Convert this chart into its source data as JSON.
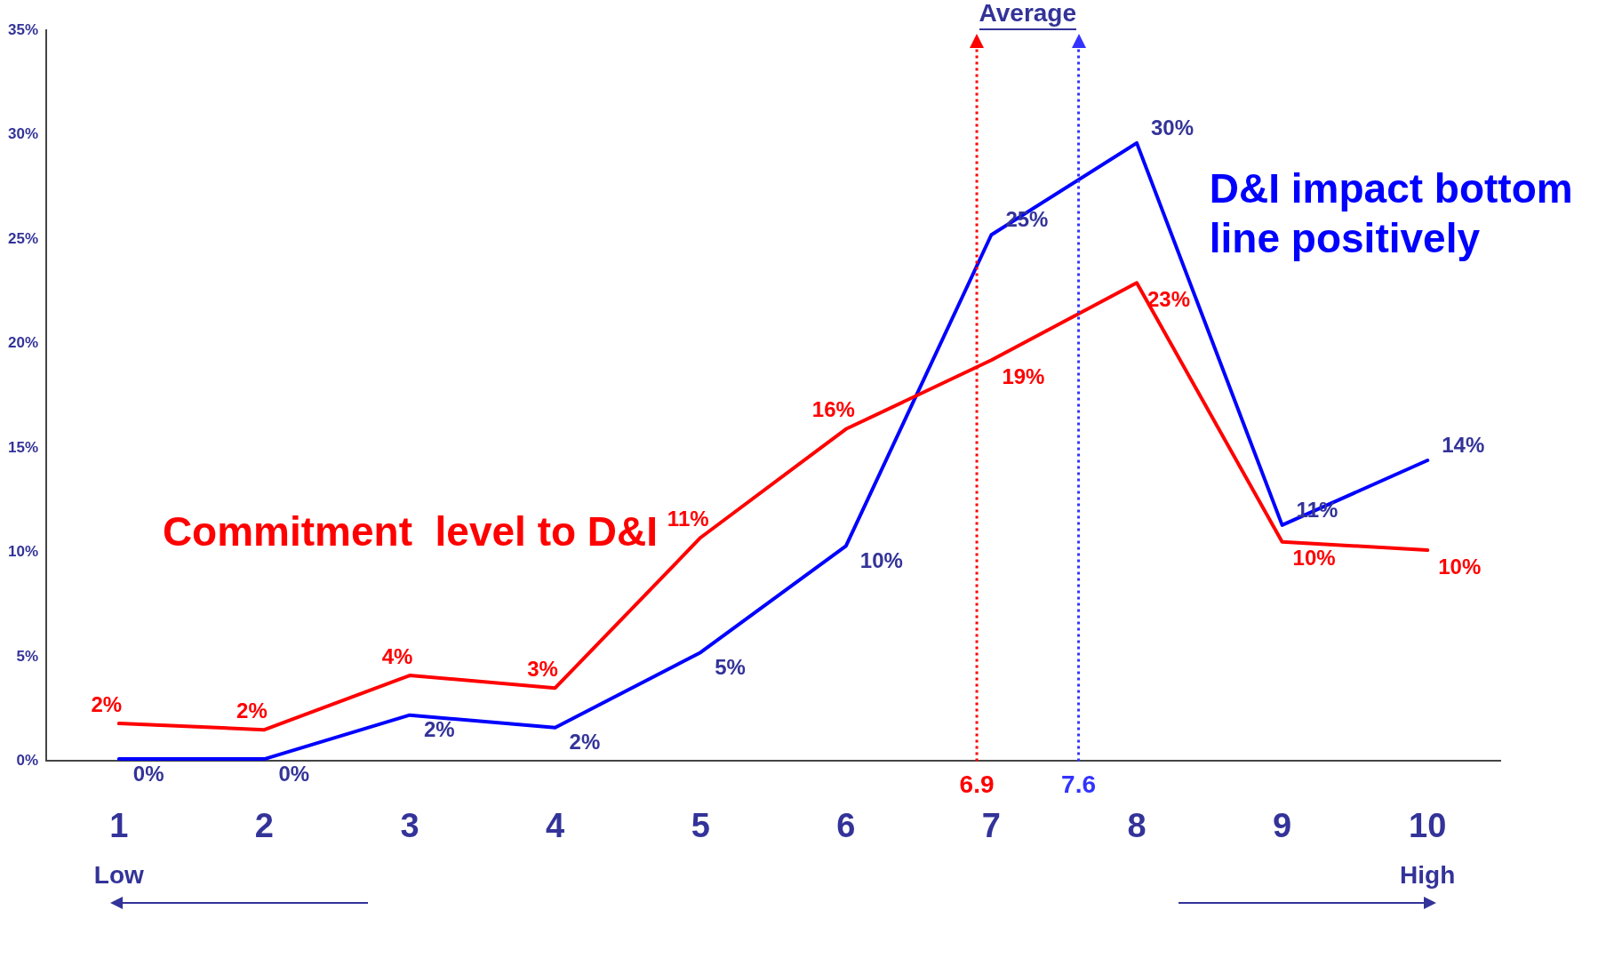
{
  "chart_data": {
    "type": "line",
    "x": [
      1,
      2,
      3,
      4,
      5,
      6,
      7,
      8,
      9,
      10
    ],
    "xlim": [
      0.5,
      10.5
    ],
    "xticks": [
      1,
      2,
      3,
      4,
      5,
      6,
      7,
      8,
      9,
      10
    ],
    "ylim": [
      0,
      35
    ],
    "yticks": [
      {
        "value": 0,
        "label": "0%"
      },
      {
        "value": 5,
        "label": "5%"
      },
      {
        "value": 10,
        "label": "10%"
      },
      {
        "value": 15,
        "label": "15%"
      },
      {
        "value": 20,
        "label": "20%"
      },
      {
        "value": 25,
        "label": "25%"
      },
      {
        "value": 30,
        "label": "30%"
      },
      {
        "value": 35,
        "label": "35%"
      }
    ],
    "series": [
      {
        "name": "Commitment  level to D&I",
        "color": "#ff0000",
        "values": [
          1.8,
          1.5,
          4.1,
          3.5,
          10.7,
          15.9,
          19.2,
          22.9,
          10.5,
          10.1
        ],
        "value_labels": [
          "2%",
          "2%",
          "4%",
          "3%",
          "11%",
          "16%",
          "19%",
          "23%",
          "10%",
          "10%"
        ]
      },
      {
        "name": "D&I impact bottom line positively",
        "color": "#0000ff",
        "values": [
          0.1,
          0.1,
          2.2,
          1.6,
          5.2,
          10.3,
          25.2,
          29.6,
          11.3,
          14.4
        ],
        "value_labels": [
          "0%",
          "0%",
          "2%",
          "2%",
          "5%",
          "10%",
          "25%",
          "30%",
          "11%",
          "14%"
        ]
      }
    ],
    "ref_lines": [
      {
        "axis": "x",
        "value": 6.9,
        "label": "6.9",
        "color": "#ff0000",
        "line_style": "dotted"
      },
      {
        "axis": "x",
        "value": 7.6,
        "label": "7.6",
        "color": "#3333ff",
        "line_style": "dotted"
      }
    ],
    "annotations": [
      "Average",
      "Low",
      "High"
    ],
    "grid": false,
    "legend": false,
    "marker": "none",
    "line_style": "solid"
  }
}
